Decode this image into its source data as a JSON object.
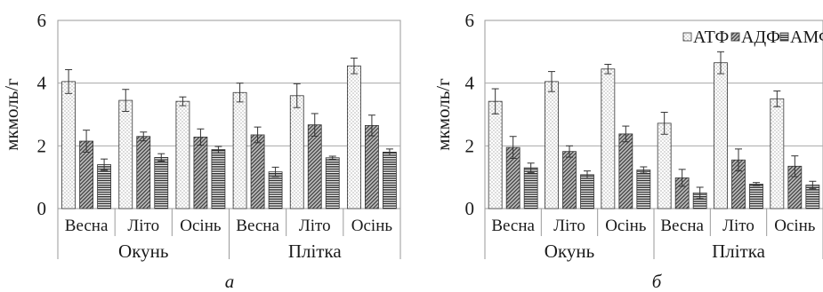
{
  "chart_data": [
    {
      "type": "bar",
      "panel_label": "а",
      "ylabel": "мкмоль/г",
      "ylim": [
        0,
        6
      ],
      "yticks": [
        0,
        2,
        4,
        6
      ],
      "grid": true,
      "legend": null,
      "categories": [
        "Весна",
        "Літо",
        "Осінь",
        "Весна",
        "Літо",
        "Осінь"
      ],
      "groups": [
        "Окунь",
        "Плітка"
      ],
      "series": [
        {
          "key": "atp",
          "values": [
            4.05,
            3.45,
            3.42,
            3.7,
            3.6,
            4.55
          ],
          "errors": [
            0.38,
            0.35,
            0.14,
            0.3,
            0.38,
            0.25
          ]
        },
        {
          "key": "adp",
          "values": [
            2.15,
            2.3,
            2.28,
            2.35,
            2.67,
            2.65
          ],
          "errors": [
            0.35,
            0.14,
            0.26,
            0.25,
            0.36,
            0.33
          ]
        },
        {
          "key": "amp",
          "values": [
            1.4,
            1.63,
            1.88,
            1.17,
            1.62,
            1.8
          ],
          "errors": [
            0.18,
            0.12,
            0.1,
            0.15,
            0.05,
            0.1
          ]
        }
      ]
    },
    {
      "type": "bar",
      "panel_label": "б",
      "ylabel": "мкмоль/г",
      "ylim": [
        0,
        6
      ],
      "yticks": [
        0,
        2,
        4,
        6
      ],
      "grid": true,
      "legend": {
        "placement": "top-right",
        "entries": [
          "АТФ",
          "АДФ",
          "АМФ"
        ]
      },
      "categories": [
        "Весна",
        "Літо",
        "Осінь",
        "Весна",
        "Літо",
        "Осінь"
      ],
      "groups": [
        "Окунь",
        "Плітка"
      ],
      "series": [
        {
          "key": "atp",
          "name": "АТФ",
          "values": [
            3.42,
            4.05,
            4.45,
            2.72,
            4.65,
            3.5
          ],
          "errors": [
            0.4,
            0.32,
            0.15,
            0.35,
            0.35,
            0.25
          ]
        },
        {
          "key": "adp",
          "name": "АДФ",
          "values": [
            1.95,
            1.82,
            2.38,
            0.98,
            1.55,
            1.35
          ],
          "errors": [
            0.35,
            0.18,
            0.25,
            0.27,
            0.35,
            0.33
          ]
        },
        {
          "key": "amp",
          "name": "АМФ",
          "values": [
            1.3,
            1.08,
            1.23,
            0.5,
            0.78,
            0.75
          ],
          "errors": [
            0.15,
            0.12,
            0.1,
            0.18,
            0.05,
            0.12
          ]
        }
      ]
    }
  ]
}
